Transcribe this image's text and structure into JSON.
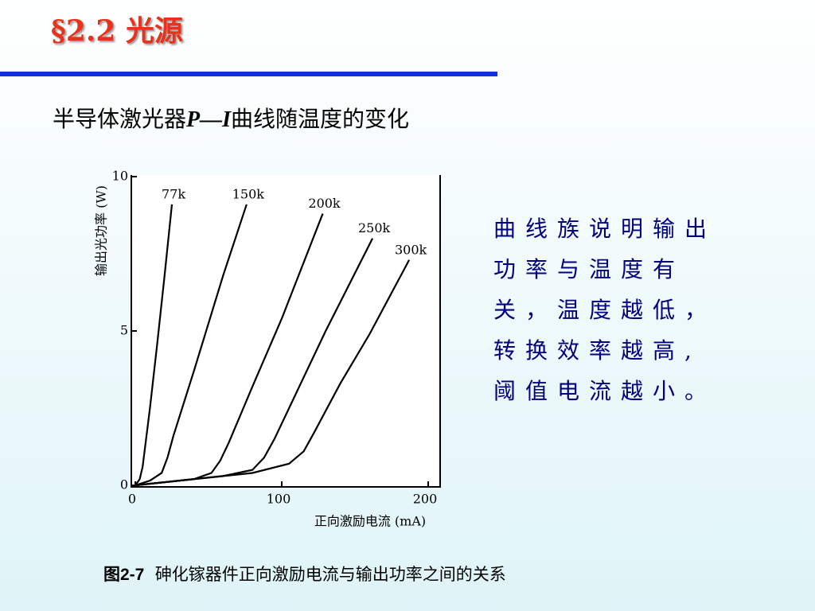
{
  "header": {
    "title": "§2.2 光源"
  },
  "subtitle": {
    "before": "半导体激光器",
    "italic": "P—I",
    "after": "曲线随温度的变化"
  },
  "chart_data": {
    "type": "line",
    "x_label": "正向激励电流 (mA)",
    "y_label": "输出光功率 (W)",
    "xlim": [
      0,
      200
    ],
    "xticks": [
      0,
      100,
      200
    ],
    "ylim": [
      0,
      10
    ],
    "yticks": [
      0,
      5,
      10
    ],
    "series": [
      {
        "name": "77k",
        "color": "#000000",
        "x": [
          0,
          3,
          5,
          10,
          15,
          20,
          25
        ],
        "values": [
          0,
          0.2,
          0.6,
          2.5,
          4.6,
          6.8,
          9.1
        ]
      },
      {
        "name": "150k",
        "color": "#000000",
        "x": [
          0,
          10,
          18,
          22,
          26,
          40,
          60,
          76
        ],
        "values": [
          0,
          0.15,
          0.4,
          0.9,
          1.6,
          3.7,
          6.8,
          9.1
        ]
      },
      {
        "name": "200k",
        "color": "#000000",
        "x": [
          0,
          40,
          52,
          58,
          64,
          80,
          100,
          128
        ],
        "values": [
          0,
          0.2,
          0.4,
          0.8,
          1.4,
          3.2,
          5.4,
          8.8
        ]
      },
      {
        "name": "250k",
        "color": "#000000",
        "x": [
          0,
          60,
          80,
          88,
          95,
          110,
          130,
          162
        ],
        "values": [
          0,
          0.3,
          0.5,
          0.9,
          1.5,
          3.0,
          5.0,
          8.0
        ]
      },
      {
        "name": "300k",
        "color": "#000000",
        "x": [
          0,
          80,
          105,
          115,
          122,
          140,
          160,
          187
        ],
        "values": [
          0,
          0.4,
          0.7,
          1.1,
          1.7,
          3.3,
          4.9,
          7.3
        ]
      }
    ]
  },
  "body_text": "曲线族说明输出功率与温度有关，温度越低，转换效率越高,阈值电流越小。",
  "caption": {
    "label": "图2-7",
    "text": "砷化镓器件正向激励电流与输出功率之间的关系"
  }
}
